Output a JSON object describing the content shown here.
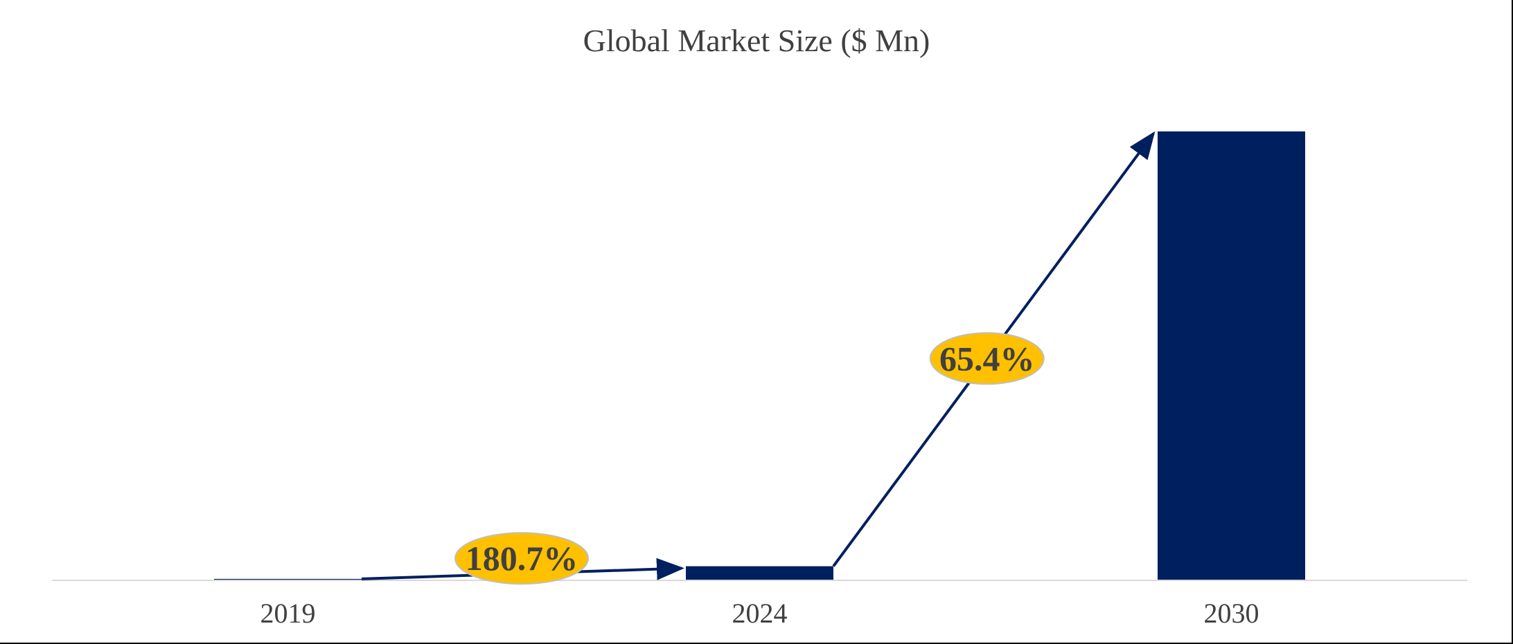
{
  "chart_data": {
    "type": "bar",
    "title": "Global Market Size ($ Mn)",
    "xlabel": "",
    "ylabel": "",
    "categories": [
      "2019",
      "2024",
      "2030"
    ],
    "values": [
      0.17,
      3.0,
      100
    ],
    "ylim": [
      0,
      100
    ],
    "grid": false,
    "legend": "none",
    "bar_color": "#001f5f",
    "axis_color": "#d9d9d9",
    "annotations": [
      {
        "from": "2019",
        "to": "2024",
        "label": "180.7%"
      },
      {
        "from": "2024",
        "to": "2030",
        "label": "65.4%"
      }
    ],
    "annotation_color": "#ffc000",
    "arrow_color": "#001f5f"
  }
}
